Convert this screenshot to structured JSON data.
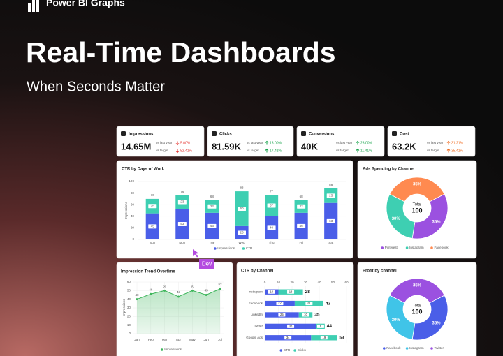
{
  "header": {
    "brand": "Power BI Graphs",
    "title": "Real-Time Dashboards",
    "subtitle": "When Seconds Matter",
    "badge": "Dev"
  },
  "kpis": [
    {
      "name": "Impressions",
      "value": "14.65M",
      "color": "#e53935",
      "rows": [
        {
          "label": "vs last year",
          "change": "5.00%",
          "dir": "down"
        },
        {
          "label": "vs target",
          "change": "52.41%",
          "dir": "down"
        }
      ]
    },
    {
      "name": "Clicks",
      "value": "81.59K",
      "color": "#16a34a",
      "rows": [
        {
          "label": "vs last year",
          "change": "13.00%",
          "dir": "up"
        },
        {
          "label": "vs target",
          "change": "17.41%",
          "dir": "up"
        }
      ]
    },
    {
      "name": "Conversions",
      "value": "40K",
      "color": "#16a34a",
      "rows": [
        {
          "label": "vs last year",
          "change": "23.00%",
          "dir": "up"
        },
        {
          "label": "vs target",
          "change": "11.41%",
          "dir": "up"
        }
      ]
    },
    {
      "name": "Cost",
      "value": "63.2K",
      "color": "#f06a1f",
      "rows": [
        {
          "label": "vs last year",
          "change": "31.21%",
          "dir": "up"
        },
        {
          "label": "vs target",
          "change": "35.41%",
          "dir": "up"
        }
      ]
    }
  ],
  "chart_data": [
    {
      "type": "stacked_bar",
      "title": "CTR by Days of Work",
      "categories": [
        "Sun",
        "Mon",
        "Tue",
        "Wed",
        "Thu",
        "Fri",
        "Sat"
      ],
      "series": [
        {
          "name": "Impressions",
          "color": "#4a5ee8",
          "values": [
            45,
            53,
            46,
            23,
            40,
            46,
            63
          ]
        },
        {
          "name": "CTR",
          "color": "#3ecfb2",
          "values": [
            25,
            23,
            22,
            60,
            37,
            22,
            25
          ]
        }
      ],
      "totals": [
        70,
        76,
        68,
        83,
        77,
        68,
        88
      ],
      "ylabel": "Impressions",
      "ylim": [
        0,
        100
      ],
      "yticks": [
        0,
        20,
        40,
        60,
        80,
        100
      ],
      "grid": true
    },
    {
      "type": "donut",
      "title": "Ads Spending by Channel",
      "center_label": "Total",
      "center_value": 100,
      "categories": [
        "Pinterest",
        "Instagram",
        "Facebook"
      ],
      "values": [
        35,
        30,
        35
      ],
      "value_labels": [
        "35%",
        "30%",
        "35%"
      ],
      "colors": [
        "#9b51e0",
        "#3ecfb2",
        "#ff8a50"
      ]
    },
    {
      "type": "line",
      "title": "Impression Trend Overtime",
      "categories": [
        "Jan",
        "Feb",
        "Mar",
        "Apr",
        "May",
        "Jun",
        "Jul"
      ],
      "series": [
        {
          "name": "Impressions",
          "color": "#3cb55a",
          "values": [
            40,
            46,
            50,
            43,
            50,
            45,
            52
          ]
        }
      ],
      "ylabel": "Impressions",
      "ylim": [
        0,
        60
      ],
      "yticks": [
        0,
        10,
        20,
        30,
        40,
        50,
        60
      ],
      "grid": true
    },
    {
      "type": "hbar",
      "title": "CTR by Channel",
      "categories": [
        "Instagram",
        "Facebook",
        "LinkedIn",
        "Twitter",
        "Google Ads"
      ],
      "series": [
        {
          "name": "CTR",
          "color": "#4a5ee8",
          "values": [
            10,
            22,
            25,
            38,
            34
          ]
        },
        {
          "name": "Clicks",
          "color": "#3ecfb2",
          "values": [
            18,
            21,
            10,
            6,
            19
          ]
        }
      ],
      "totals": [
        28,
        43,
        35,
        44,
        53
      ],
      "xlim": [
        0,
        60
      ],
      "xticks": [
        0,
        10,
        20,
        30,
        40,
        50,
        60
      ],
      "grid": true
    },
    {
      "type": "donut",
      "title": "Profit by channel",
      "center_label": "Total",
      "center_value": 100,
      "categories": [
        "Facebook",
        "Instagram",
        "Twitter"
      ],
      "values": [
        35,
        30,
        35
      ],
      "value_labels": [
        "35%",
        "30%",
        "35%"
      ],
      "colors": [
        "#4a5ee8",
        "#40c4e8",
        "#9b51e0"
      ]
    }
  ]
}
